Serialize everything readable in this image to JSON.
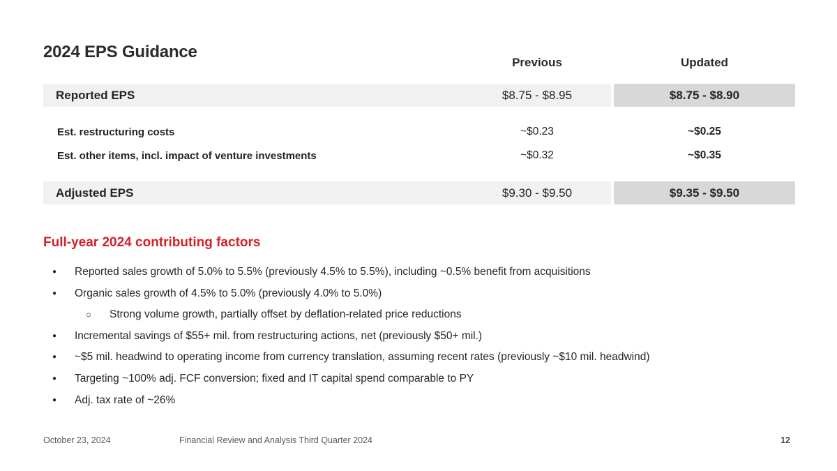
{
  "slide": {
    "title": "2024 EPS Guidance",
    "colors": {
      "accent_red": "#d2222a",
      "row_band_bg": "#f1f1f2",
      "updated_cell_bg": "#d8d8d8",
      "text_dark": "#232323",
      "footer_gray": "#595959"
    }
  },
  "guidance_table": {
    "headers": {
      "previous": "Previous",
      "updated": "Updated"
    },
    "rows": [
      {
        "label": "Reported EPS",
        "previous": "$8.75 - $8.95",
        "updated": "$8.75 - $8.90"
      },
      {
        "label": "Est. restructuring costs",
        "previous": "~$0.23",
        "updated": "~$0.25"
      },
      {
        "label": "Est. other items, incl. impact of venture investments",
        "previous": "~$0.32",
        "updated": "~$0.35"
      },
      {
        "label": "Adjusted EPS",
        "previous": "$9.30 - $9.50",
        "updated": "$9.35 - $9.50"
      }
    ]
  },
  "factors": {
    "heading": "Full-year 2024 contributing factors",
    "bullets": [
      {
        "level": 1,
        "text": "Reported sales growth of 5.0% to 5.5% (previously 4.5% to 5.5%), including ~0.5% benefit from acquisitions"
      },
      {
        "level": 1,
        "text": "Organic sales growth of 4.5% to 5.0% (previously 4.0% to 5.0%)"
      },
      {
        "level": 2,
        "text": "Strong volume growth, partially offset by deflation-related price reductions"
      },
      {
        "level": 1,
        "text": "Incremental savings of $55+ mil. from restructuring actions, net (previously $50+ mil.)"
      },
      {
        "level": 1,
        "text": "~$5 mil. headwind to operating income from currency translation, assuming recent rates (previously ~$10 mil. headwind)"
      },
      {
        "level": 1,
        "text": "Targeting ~100% adj. FCF conversion; fixed and IT capital spend comparable to PY"
      },
      {
        "level": 1,
        "text": "Adj. tax rate of ~26%"
      }
    ]
  },
  "glyphs": {
    "bullet": "●",
    "sub_bullet": "○"
  },
  "footer": {
    "date": "October 23, 2024",
    "doc_title": "Financial Review and Analysis Third Quarter 2024",
    "page_number": "12"
  }
}
